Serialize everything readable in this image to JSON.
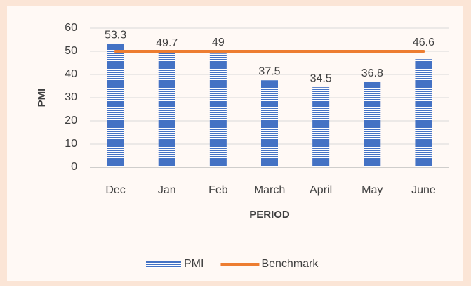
{
  "chart_data": {
    "type": "combo",
    "categories": [
      "Dec",
      "Jan",
      "Feb",
      "March",
      "April",
      "May",
      "June"
    ],
    "series": [
      {
        "name": "PMI",
        "type": "bar",
        "color": "#4472c4",
        "values": [
          53.3,
          49.7,
          49,
          37.5,
          34.5,
          36.8,
          46.6
        ]
      },
      {
        "name": "Benchmark",
        "type": "line",
        "color": "#ed7d31",
        "values": [
          50,
          50,
          50,
          50,
          50,
          50,
          50
        ]
      }
    ],
    "y_label": "PMI",
    "x_label": "PERIOD",
    "ylim": [
      0,
      60
    ],
    "yticks": [
      0,
      10,
      20,
      30,
      40,
      50,
      60
    ],
    "grid": true,
    "legend": "bottom"
  }
}
